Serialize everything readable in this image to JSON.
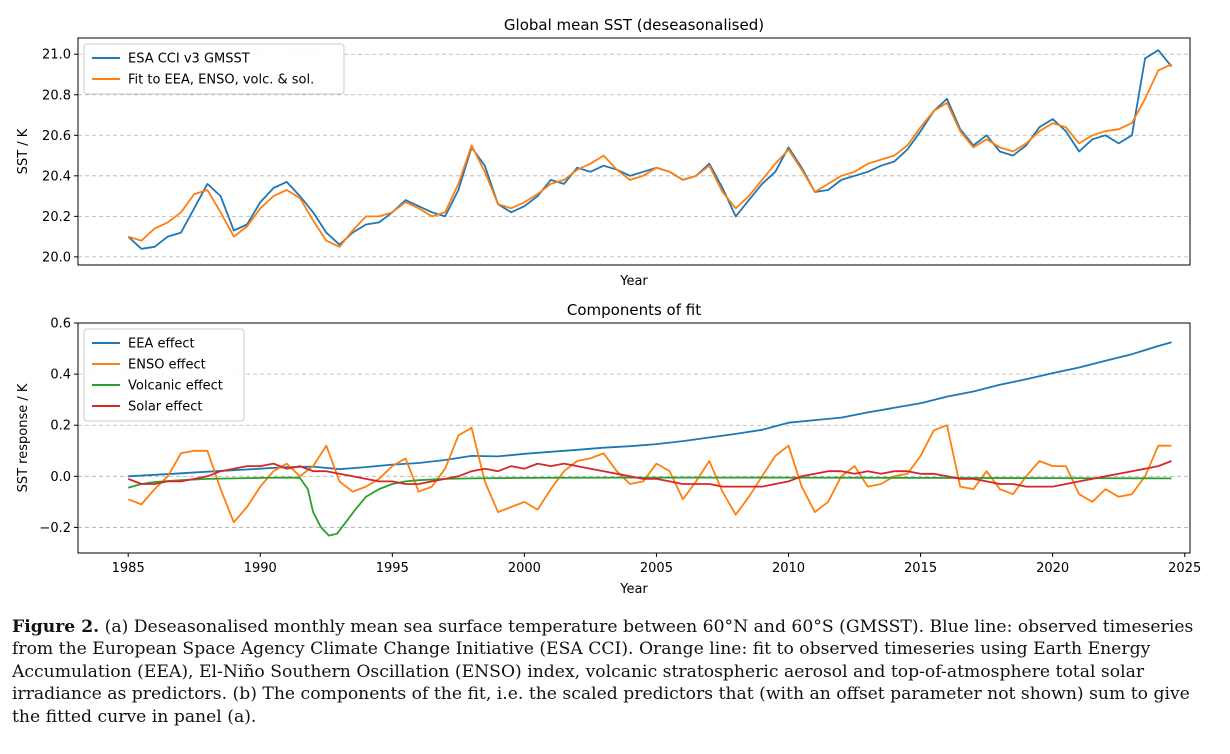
{
  "chart_data": [
    {
      "type": "line",
      "title": "Global mean SST (deseasonalised)",
      "xlabel": "Year",
      "ylabel": "SST / K",
      "xlim": [
        1983.1,
        2025.2
      ],
      "ylim": [
        19.96,
        21.08
      ],
      "yticks": [
        20.0,
        20.2,
        20.4,
        20.6,
        20.8,
        21.0
      ],
      "xticks_labeled": false,
      "grid": "horizontal dashed",
      "legend_position": "top-left",
      "series": [
        {
          "name": "ESA CCI v3 GMSST",
          "color": "#1f77b4",
          "x": [
            1985.0,
            1985.5,
            1986.0,
            1986.5,
            1987.0,
            1987.5,
            1988.0,
            1988.5,
            1989.0,
            1989.5,
            1990.0,
            1990.5,
            1991.0,
            1991.5,
            1992.0,
            1992.5,
            1993.0,
            1993.5,
            1994.0,
            1994.5,
            1995.0,
            1995.5,
            1996.0,
            1996.5,
            1997.0,
            1997.5,
            1998.0,
            1998.5,
            1999.0,
            1999.5,
            2000.0,
            2000.5,
            2001.0,
            2001.5,
            2002.0,
            2002.5,
            2003.0,
            2003.5,
            2004.0,
            2004.5,
            2005.0,
            2005.5,
            2006.0,
            2006.5,
            2007.0,
            2007.5,
            2008.0,
            2008.5,
            2009.0,
            2009.5,
            2010.0,
            2010.5,
            2011.0,
            2011.5,
            2012.0,
            2012.5,
            2013.0,
            2013.5,
            2014.0,
            2014.5,
            2015.0,
            2015.5,
            2016.0,
            2016.5,
            2017.0,
            2017.5,
            2018.0,
            2018.5,
            2019.0,
            2019.5,
            2020.0,
            2020.5,
            2021.0,
            2021.5,
            2022.0,
            2022.5,
            2023.0,
            2023.5,
            2024.0,
            2024.5
          ],
          "values": [
            20.1,
            20.04,
            20.05,
            20.1,
            20.12,
            20.24,
            20.36,
            20.3,
            20.13,
            20.16,
            20.27,
            20.34,
            20.37,
            20.3,
            20.22,
            20.12,
            20.06,
            20.12,
            20.16,
            20.17,
            20.22,
            20.28,
            20.25,
            20.22,
            20.2,
            20.33,
            20.54,
            20.45,
            20.26,
            20.22,
            20.25,
            20.3,
            20.38,
            20.36,
            20.44,
            20.42,
            20.45,
            20.43,
            20.4,
            20.42,
            20.44,
            20.42,
            20.38,
            20.4,
            20.46,
            20.34,
            20.2,
            20.28,
            20.36,
            20.42,
            20.54,
            20.44,
            20.32,
            20.33,
            20.38,
            20.4,
            20.42,
            20.45,
            20.47,
            20.53,
            20.62,
            20.72,
            20.78,
            20.63,
            20.55,
            20.6,
            20.52,
            20.5,
            20.55,
            20.64,
            20.68,
            20.62,
            20.52,
            20.58,
            20.6,
            20.56,
            20.6,
            20.98,
            21.02,
            20.94
          ]
        },
        {
          "name": "Fit to EEA, ENSO, volc. & sol.",
          "color": "#ff7f0e",
          "x": [
            1985.0,
            1985.5,
            1986.0,
            1986.5,
            1987.0,
            1987.5,
            1988.0,
            1988.5,
            1989.0,
            1989.5,
            1990.0,
            1990.5,
            1991.0,
            1991.5,
            1992.0,
            1992.5,
            1993.0,
            1993.5,
            1994.0,
            1994.5,
            1995.0,
            1995.5,
            1996.0,
            1996.5,
            1997.0,
            1997.5,
            1998.0,
            1998.5,
            1999.0,
            1999.5,
            2000.0,
            2000.5,
            2001.0,
            2001.5,
            2002.0,
            2002.5,
            2003.0,
            2003.5,
            2004.0,
            2004.5,
            2005.0,
            2005.5,
            2006.0,
            2006.5,
            2007.0,
            2007.5,
            2008.0,
            2008.5,
            2009.0,
            2009.5,
            2010.0,
            2010.5,
            2011.0,
            2011.5,
            2012.0,
            2012.5,
            2013.0,
            2013.5,
            2014.0,
            2014.5,
            2015.0,
            2015.5,
            2016.0,
            2016.5,
            2017.0,
            2017.5,
            2018.0,
            2018.5,
            2019.0,
            2019.5,
            2020.0,
            2020.5,
            2021.0,
            2021.5,
            2022.0,
            2022.5,
            2023.0,
            2023.5,
            2024.0,
            2024.5
          ],
          "values": [
            20.1,
            20.08,
            20.14,
            20.17,
            20.22,
            20.31,
            20.33,
            20.22,
            20.1,
            20.15,
            20.24,
            20.3,
            20.33,
            20.29,
            20.18,
            20.08,
            20.05,
            20.13,
            20.2,
            20.2,
            20.22,
            20.27,
            20.24,
            20.2,
            20.22,
            20.36,
            20.55,
            20.42,
            20.26,
            20.24,
            20.27,
            20.31,
            20.36,
            20.38,
            20.43,
            20.46,
            20.5,
            20.43,
            20.38,
            20.4,
            20.44,
            20.42,
            20.38,
            20.4,
            20.45,
            20.32,
            20.24,
            20.3,
            20.38,
            20.46,
            20.53,
            20.43,
            20.32,
            20.36,
            20.4,
            20.42,
            20.46,
            20.48,
            20.5,
            20.55,
            20.64,
            20.72,
            20.76,
            20.62,
            20.54,
            20.58,
            20.54,
            20.52,
            20.56,
            20.62,
            20.66,
            20.64,
            20.56,
            20.6,
            20.62,
            20.63,
            20.66,
            20.78,
            20.92,
            20.95
          ]
        }
      ]
    },
    {
      "type": "line",
      "title": "Components of fit",
      "xlabel": "Year",
      "ylabel": "SST response / K",
      "xlim": [
        1983.1,
        2025.2
      ],
      "ylim": [
        -0.3,
        0.6
      ],
      "xticks": [
        1985,
        1990,
        1995,
        2000,
        2005,
        2010,
        2015,
        2020,
        2025
      ],
      "yticks": [
        -0.2,
        0.0,
        0.2,
        0.4,
        0.6
      ],
      "yticklabels": [
        "−0.2",
        "0.0",
        "0.2",
        "0.4",
        "0.6"
      ],
      "grid": "horizontal dashed",
      "legend_position": "top-left",
      "series": [
        {
          "name": "EEA effect",
          "color": "#1f77b4",
          "x": [
            1985.0,
            1986.0,
            1987.0,
            1988.0,
            1989.0,
            1990.0,
            1991.0,
            1992.0,
            1993.0,
            1994.0,
            1995.0,
            1996.0,
            1997.0,
            1998.0,
            1999.0,
            2000.0,
            2001.0,
            2002.0,
            2003.0,
            2004.0,
            2005.0,
            2006.0,
            2007.0,
            2008.0,
            2009.0,
            2010.0,
            2011.0,
            2012.0,
            2013.0,
            2014.0,
            2015.0,
            2016.0,
            2017.0,
            2018.0,
            2019.0,
            2020.0,
            2021.0,
            2022.0,
            2023.0,
            2024.0,
            2024.5
          ],
          "values": [
            0.0,
            0.006,
            0.012,
            0.018,
            0.024,
            0.03,
            0.036,
            0.038,
            0.028,
            0.036,
            0.046,
            0.052,
            0.064,
            0.08,
            0.078,
            0.088,
            0.096,
            0.104,
            0.112,
            0.118,
            0.126,
            0.138,
            0.152,
            0.166,
            0.182,
            0.21,
            0.22,
            0.23,
            0.25,
            0.268,
            0.286,
            0.312,
            0.332,
            0.358,
            0.38,
            0.404,
            0.426,
            0.452,
            0.478,
            0.51,
            0.525
          ]
        },
        {
          "name": "ENSO effect",
          "color": "#ff7f0e",
          "x": [
            1985.0,
            1985.5,
            1986.0,
            1986.5,
            1987.0,
            1987.5,
            1988.0,
            1988.5,
            1989.0,
            1989.5,
            1990.0,
            1990.5,
            1991.0,
            1991.5,
            1992.0,
            1992.5,
            1993.0,
            1993.5,
            1994.0,
            1994.5,
            1995.0,
            1995.5,
            1996.0,
            1996.5,
            1997.0,
            1997.5,
            1998.0,
            1998.5,
            1999.0,
            1999.5,
            2000.0,
            2000.5,
            2001.0,
            2001.5,
            2002.0,
            2002.5,
            2003.0,
            2003.5,
            2004.0,
            2004.5,
            2005.0,
            2005.5,
            2006.0,
            2006.5,
            2007.0,
            2007.5,
            2008.0,
            2008.5,
            2009.0,
            2009.5,
            2010.0,
            2010.5,
            2011.0,
            2011.5,
            2012.0,
            2012.5,
            2013.0,
            2013.5,
            2014.0,
            2014.5,
            2015.0,
            2015.5,
            2016.0,
            2016.5,
            2017.0,
            2017.5,
            2018.0,
            2018.5,
            2019.0,
            2019.5,
            2020.0,
            2020.5,
            2021.0,
            2021.5,
            2022.0,
            2022.5,
            2023.0,
            2023.5,
            2024.0,
            2024.5
          ],
          "values": [
            -0.09,
            -0.11,
            -0.05,
            0.0,
            0.09,
            0.1,
            0.1,
            -0.05,
            -0.18,
            -0.12,
            -0.04,
            0.02,
            0.05,
            0.0,
            0.04,
            0.12,
            -0.02,
            -0.06,
            -0.04,
            -0.01,
            0.04,
            0.07,
            -0.06,
            -0.04,
            0.03,
            0.16,
            0.19,
            -0.02,
            -0.14,
            -0.12,
            -0.1,
            -0.13,
            -0.05,
            0.02,
            0.06,
            0.07,
            0.09,
            0.02,
            -0.03,
            -0.02,
            0.05,
            0.02,
            -0.09,
            -0.02,
            0.06,
            -0.06,
            -0.15,
            -0.08,
            0.0,
            0.08,
            0.12,
            -0.04,
            -0.14,
            -0.1,
            0.0,
            0.04,
            -0.04,
            -0.03,
            0.0,
            0.01,
            0.08,
            0.18,
            0.2,
            -0.04,
            -0.05,
            0.02,
            -0.05,
            -0.07,
            0.0,
            0.06,
            0.04,
            0.04,
            -0.07,
            -0.1,
            -0.05,
            -0.08,
            -0.07,
            0.0,
            0.12,
            0.12
          ]
        },
        {
          "name": "Volcanic effect",
          "color": "#2ca02c",
          "x": [
            1985.0,
            1985.5,
            1986.0,
            1987.0,
            1988.0,
            1989.0,
            1990.0,
            1991.0,
            1991.5,
            1991.8,
            1992.0,
            1992.3,
            1992.6,
            1992.9,
            1993.2,
            1993.6,
            1994.0,
            1994.5,
            1995.0,
            1995.5,
            1996.0,
            1997.0,
            1998.0,
            2000.0,
            2005.0,
            2010.0,
            2015.0,
            2020.0,
            2024.5
          ],
          "values": [
            -0.045,
            -0.03,
            -0.022,
            -0.015,
            -0.01,
            -0.008,
            -0.006,
            -0.005,
            -0.006,
            -0.05,
            -0.14,
            -0.2,
            -0.232,
            -0.225,
            -0.185,
            -0.13,
            -0.08,
            -0.05,
            -0.03,
            -0.02,
            -0.015,
            -0.01,
            -0.008,
            -0.006,
            -0.005,
            -0.005,
            -0.006,
            -0.007,
            -0.008
          ]
        },
        {
          "name": "Solar effect",
          "color": "#d62728",
          "x": [
            1985.0,
            1985.5,
            1986.0,
            1986.5,
            1987.0,
            1987.5,
            1988.0,
            1988.5,
            1989.0,
            1989.5,
            1990.0,
            1990.5,
            1991.0,
            1991.5,
            1992.0,
            1992.5,
            1993.0,
            1993.5,
            1994.0,
            1994.5,
            1995.0,
            1995.5,
            1996.0,
            1996.5,
            1997.0,
            1997.5,
            1998.0,
            1998.5,
            1999.0,
            1999.5,
            2000.0,
            2000.5,
            2001.0,
            2001.5,
            2002.0,
            2002.5,
            2003.0,
            2003.5,
            2004.0,
            2004.5,
            2005.0,
            2005.5,
            2006.0,
            2006.5,
            2007.0,
            2007.5,
            2008.0,
            2008.5,
            2009.0,
            2009.5,
            2010.0,
            2010.5,
            2011.0,
            2011.5,
            2012.0,
            2012.5,
            2013.0,
            2013.5,
            2014.0,
            2014.5,
            2015.0,
            2015.5,
            2016.0,
            2016.5,
            2017.0,
            2017.5,
            2018.0,
            2018.5,
            2019.0,
            2019.5,
            2020.0,
            2020.5,
            2021.0,
            2021.5,
            2022.0,
            2022.5,
            2023.0,
            2023.5,
            2024.0,
            2024.5
          ],
          "values": [
            -0.01,
            -0.03,
            -0.03,
            -0.02,
            -0.02,
            -0.01,
            0.0,
            0.02,
            0.03,
            0.04,
            0.04,
            0.05,
            0.03,
            0.04,
            0.02,
            0.02,
            0.01,
            0.0,
            -0.01,
            -0.02,
            -0.02,
            -0.03,
            -0.03,
            -0.02,
            -0.01,
            0.0,
            0.02,
            0.03,
            0.02,
            0.04,
            0.03,
            0.05,
            0.04,
            0.05,
            0.04,
            0.03,
            0.02,
            0.01,
            0.0,
            -0.01,
            -0.01,
            -0.02,
            -0.03,
            -0.03,
            -0.03,
            -0.04,
            -0.04,
            -0.04,
            -0.04,
            -0.03,
            -0.02,
            0.0,
            0.01,
            0.02,
            0.02,
            0.01,
            0.02,
            0.01,
            0.02,
            0.02,
            0.01,
            0.01,
            0.0,
            -0.01,
            -0.01,
            -0.02,
            -0.03,
            -0.03,
            -0.04,
            -0.04,
            -0.04,
            -0.03,
            -0.02,
            -0.01,
            0.0,
            0.01,
            0.02,
            0.03,
            0.04,
            0.06
          ]
        }
      ]
    }
  ],
  "caption": {
    "label": "Figure 2.",
    "text": "(a) Deseasonalised monthly mean sea surface temperature between 60°N and 60°S (GMSST). Blue line: observed timeseries from the European Space Agency Climate Change Initiative (ESA CCI). Orange line: fit to observed timeseries using Earth Energy Accumulation (EEA), El-Niño Southern Oscillation (ENSO) index, volcanic stratospheric aerosol and top-of-atmosphere total solar irradiance as predictors. (b) The components of the fit, i.e. the scaled predictors that (with an offset parameter not shown) sum to give the fitted curve in panel (a)."
  }
}
